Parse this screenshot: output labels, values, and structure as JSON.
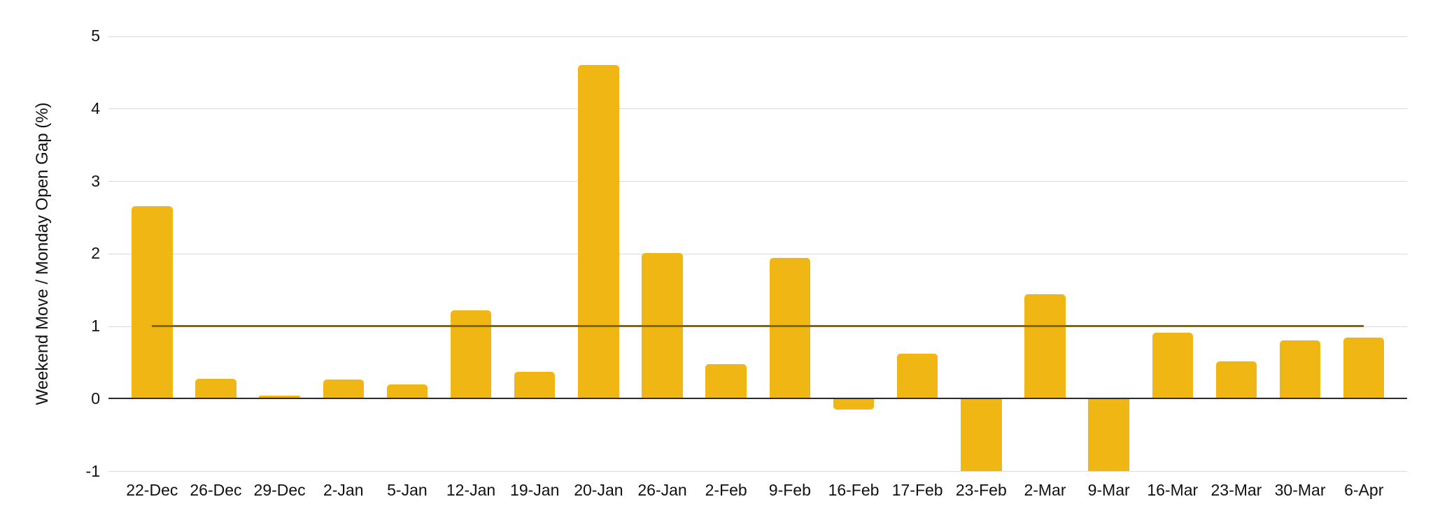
{
  "chart_data": {
    "type": "bar",
    "title": "",
    "xlabel": "",
    "ylabel": "Weekend Move / Monday Open Gap (%)",
    "categories": [
      "22-Dec",
      "26-Dec",
      "29-Dec",
      "2-Jan",
      "5-Jan",
      "12-Jan",
      "19-Jan",
      "20-Jan",
      "26-Jan",
      "2-Feb",
      "9-Feb",
      "16-Feb",
      "17-Feb",
      "23-Feb",
      "2-Mar",
      "9-Mar",
      "16-Mar",
      "23-Mar",
      "30-Mar",
      "6-Apr"
    ],
    "values": [
      2.65,
      0.27,
      0.04,
      0.26,
      0.2,
      1.22,
      0.37,
      4.6,
      2.01,
      0.48,
      1.94,
      -0.15,
      0.62,
      -1.0,
      1.44,
      -1.0,
      0.91,
      0.51,
      0.8,
      0.84
    ],
    "y_ticks": [
      5,
      4,
      3,
      2,
      1,
      0,
      -1
    ],
    "ylim": [
      -1,
      5
    ],
    "grid": "horizontal",
    "legend_position": "none",
    "bars_clipped_at_axis_min": [
      "23-Feb",
      "9-Mar"
    ],
    "threshold_line": {
      "value": 1,
      "start_category": "22-Dec",
      "end_category": "6-Apr"
    },
    "colors": {
      "bar": "#f0b714",
      "threshold_line": "#7e680e",
      "zero_axis": "#2b2b2b",
      "gridline": "#dadce0",
      "text": "#111111",
      "background": "#ffffff"
    }
  }
}
